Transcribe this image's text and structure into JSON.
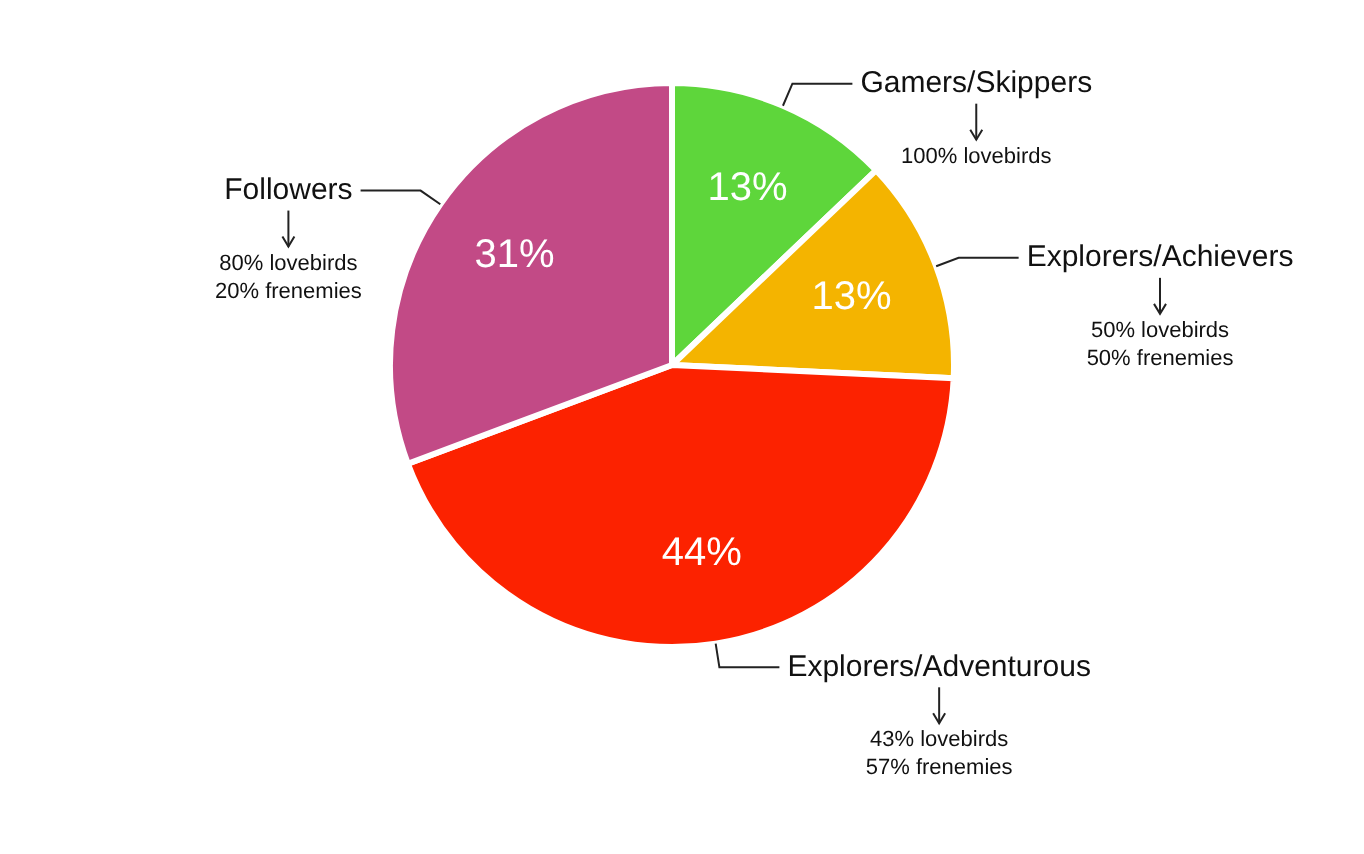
{
  "chart_data": {
    "type": "pie",
    "categories": [
      "Gamers/Skippers",
      "Explorers/Achievers",
      "Explorers/Adventurous",
      "Followers"
    ],
    "values": [
      13,
      13,
      44,
      31
    ],
    "colors": [
      "#5ed63b",
      "#f4b400",
      "#fc2200",
      "#c24a86"
    ],
    "value_labels": [
      "13%",
      "13%",
      "44%",
      "31%"
    ],
    "annotations": [
      "100% lovebirds",
      "50% lovebirds\n50% frenemies",
      "43% lovebirds\n57% frenemies",
      "80% lovebirds\n20% frenemies"
    ],
    "legend": false
  }
}
